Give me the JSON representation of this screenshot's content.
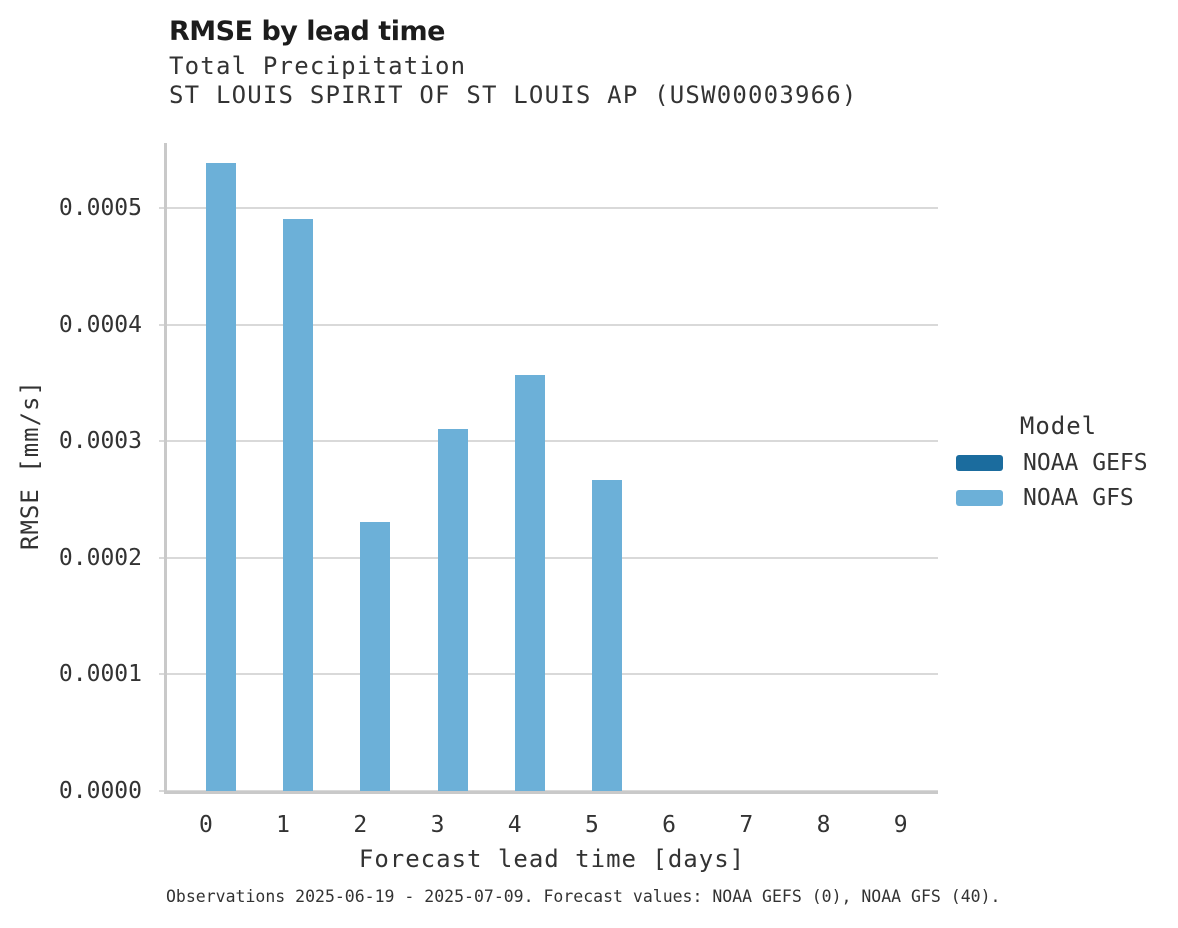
{
  "chart_data": {
    "type": "bar",
    "title": "RMSE by lead time",
    "subtitle": "Total Precipitation",
    "station": "ST LOUIS SPIRIT OF ST LOUIS AP (USW00003966)",
    "xlabel": "Forecast lead time [days]",
    "ylabel": "RMSE [mm/s]",
    "categories": [
      0,
      1,
      2,
      3,
      4,
      5,
      6,
      7,
      8,
      9
    ],
    "series": [
      {
        "name": "NOAA GEFS",
        "color": "#1b6c9e",
        "values": [
          null,
          null,
          null,
          null,
          null,
          null,
          null,
          null,
          null,
          null
        ]
      },
      {
        "name": "NOAA GFS",
        "color": "#6cb0d8",
        "values": [
          0.000539,
          0.000491,
          0.000231,
          0.000311,
          0.000357,
          0.000267,
          null,
          null,
          null,
          null
        ]
      }
    ],
    "ylim": [
      0,
      0.000556
    ],
    "yticks": [
      {
        "v": 0.0,
        "label": "0.0000"
      },
      {
        "v": 0.0001,
        "label": "0.0001"
      },
      {
        "v": 0.0002,
        "label": "0.0002"
      },
      {
        "v": 0.0003,
        "label": "0.0003"
      },
      {
        "v": 0.0004,
        "label": "0.0004"
      },
      {
        "v": 0.0005,
        "label": "0.0005"
      }
    ],
    "grid": "horizontal-major",
    "legend": {
      "title": "Model",
      "position": "right"
    },
    "caption": "Observations 2025-06-19 - 2025-07-09. Forecast values: NOAA GEFS (0), NOAA GFS (40)."
  }
}
